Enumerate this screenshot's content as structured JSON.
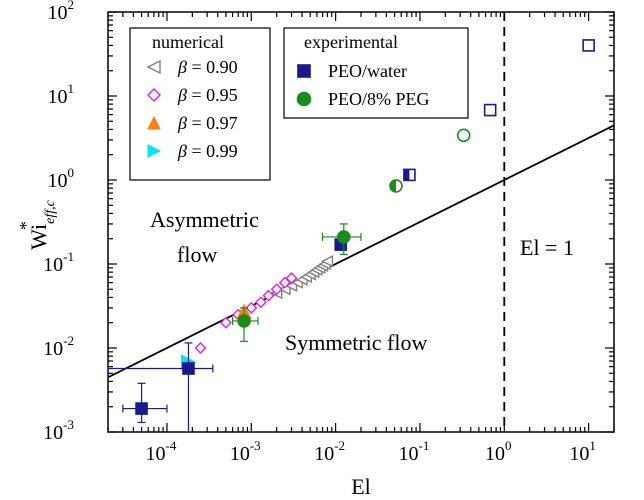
{
  "chart_data": {
    "type": "scatter",
    "xlabel": "El",
    "ylabel": "Wi",
    "ylabel_sup": "*",
    "ylabel_sub": "eff,c",
    "xscale": "log",
    "yscale": "log",
    "xlim": [
      2e-05,
      20
    ],
    "ylim": [
      0.001,
      100
    ],
    "x_ticks": [
      {
        "base": "10",
        "exp": "-4",
        "value": 0.0001
      },
      {
        "base": "10",
        "exp": "-3",
        "value": 0.001
      },
      {
        "base": "10",
        "exp": "-2",
        "value": 0.01
      },
      {
        "base": "10",
        "exp": "-1",
        "value": 0.1
      },
      {
        "base": "10",
        "exp": "0",
        "value": 1
      },
      {
        "base": "10",
        "exp": "1",
        "value": 10
      }
    ],
    "y_ticks": [
      {
        "base": "10",
        "exp": "-3",
        "value": 0.001
      },
      {
        "base": "10",
        "exp": "-2",
        "value": 0.01
      },
      {
        "base": "10",
        "exp": "-1",
        "value": 0.1
      },
      {
        "base": "10",
        "exp": "0",
        "value": 1
      },
      {
        "base": "10",
        "exp": "1",
        "value": 10
      },
      {
        "base": "10",
        "exp": "2",
        "value": 100
      }
    ],
    "reference_line": {
      "type": "Wi = El^0.5 (solid)",
      "x_range": [
        2e-05,
        20
      ]
    },
    "vertical_line": {
      "x": 1,
      "style": "dashed",
      "label": "El = 1"
    },
    "region_labels": {
      "asymmetric_1": "Asymmetric",
      "asymmetric_2": "flow",
      "symmetric": "Symmetric flow"
    },
    "legend_numerical": {
      "title": "numerical",
      "entries": [
        {
          "symbol": "β",
          "text": " = 0.90",
          "marker": "left-triangle-open",
          "color": "#808080"
        },
        {
          "symbol": "β",
          "text": " = 0.95",
          "marker": "diamond-open",
          "color": "#e61ee6"
        },
        {
          "symbol": "β",
          "text": " = 0.97",
          "marker": "triangle-up-filled",
          "color": "#ff7f0e"
        },
        {
          "symbol": "β",
          "text": " = 0.99",
          "marker": "right-triangle-filled",
          "color": "#00e5ee"
        }
      ]
    },
    "legend_experimental": {
      "title": "experimental",
      "entries": [
        {
          "text": "PEO/water",
          "marker": "square-filled",
          "color": "#1a1a8c"
        },
        {
          "text": "PEO/8% PEG",
          "marker": "circle-filled",
          "color": "#1a8c1a"
        }
      ]
    },
    "series": [
      {
        "name": "β = 0.90",
        "marker": "left-triangle-open",
        "color": "#808080",
        "x": [
          0.002,
          0.0025,
          0.003,
          0.0035,
          0.004,
          0.0045,
          0.005,
          0.0055,
          0.006,
          0.0065,
          0.007,
          0.0075,
          0.008
        ],
        "y": [
          0.045,
          0.05,
          0.055,
          0.06,
          0.065,
          0.07,
          0.075,
          0.08,
          0.085,
          0.09,
          0.095,
          0.1,
          0.108
        ]
      },
      {
        "name": "β = 0.95",
        "marker": "diamond-open",
        "color": "#e61ee6",
        "x": [
          0.00025,
          0.0005,
          0.0007,
          0.001,
          0.0013,
          0.0016,
          0.002,
          0.0025,
          0.003
        ],
        "y": [
          0.01,
          0.02,
          0.025,
          0.03,
          0.035,
          0.042,
          0.05,
          0.06,
          0.068
        ]
      },
      {
        "name": "β = 0.97",
        "marker": "triangle-up-filled",
        "color": "#ff7f0e",
        "x": [
          0.00082
        ],
        "y": [
          0.027
        ]
      },
      {
        "name": "β = 0.99",
        "marker": "right-triangle-filled",
        "color": "#00e5ee",
        "x": [
          0.00018
        ],
        "y": [
          0.0068
        ]
      },
      {
        "name": "PEO/water",
        "marker": "square",
        "color": "#1a1a8c",
        "points": [
          {
            "x": 5e-05,
            "y": 0.0019,
            "fill": "full",
            "xerr": [
              3e-05,
              0.0001
            ],
            "yerr": [
              0.0013,
              0.0038
            ]
          },
          {
            "x": 0.00018,
            "y": 0.0057,
            "fill": "full",
            "xerr": [
              2e-05,
              0.00035
            ],
            "yerr": [
              0.001,
              0.0115
            ]
          },
          {
            "x": 0.0115,
            "y": 0.17,
            "fill": "full"
          },
          {
            "x": 0.075,
            "y": 1.15,
            "fill": "half"
          },
          {
            "x": 0.68,
            "y": 6.8,
            "fill": "open"
          },
          {
            "x": 10,
            "y": 40,
            "fill": "open"
          }
        ]
      },
      {
        "name": "PEO/8% PEG",
        "marker": "circle",
        "color": "#1a8c1a",
        "points": [
          {
            "x": 0.00082,
            "y": 0.021,
            "fill": "full",
            "xerr": [
              0.0006,
              0.0012
            ],
            "yerr": [
              0.012,
              0.03
            ]
          },
          {
            "x": 0.0125,
            "y": 0.21,
            "fill": "full",
            "xerr": [
              0.007,
              0.02
            ],
            "yerr": [
              0.13,
              0.3
            ]
          },
          {
            "x": 0.052,
            "y": 0.85,
            "fill": "half"
          },
          {
            "x": 0.33,
            "y": 3.4,
            "fill": "open"
          }
        ]
      }
    ]
  }
}
